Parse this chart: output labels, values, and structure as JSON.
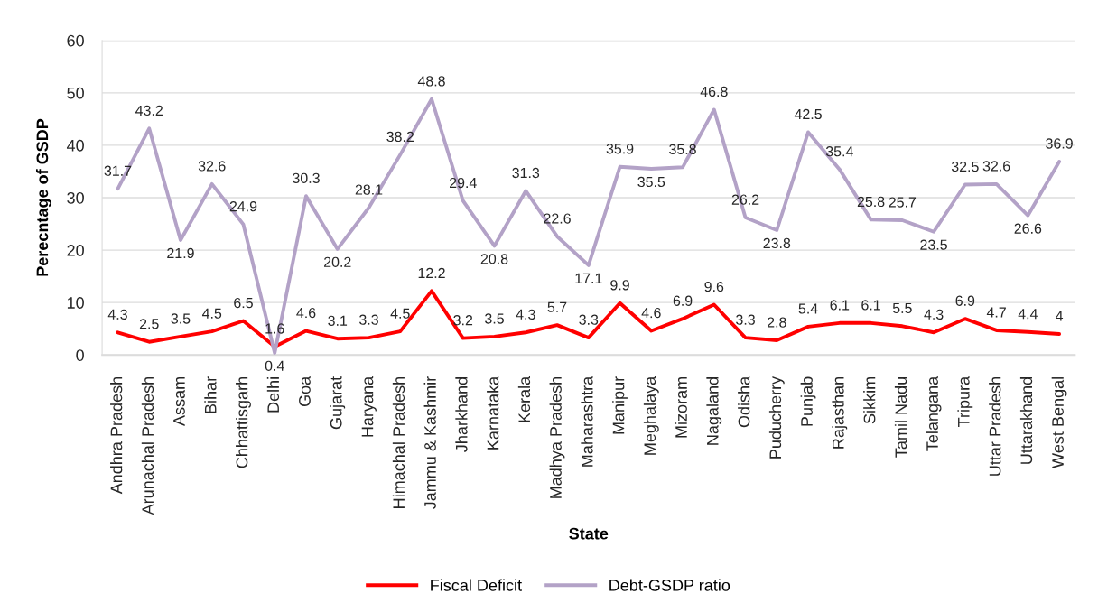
{
  "chart_data": {
    "type": "line",
    "xlabel": "State",
    "ylabel": "Perecntage of GSDP",
    "categories": [
      "Andhra Pradesh",
      "Arunachal Pradesh",
      "Assam",
      "Bihar",
      "Chhattisgarh",
      "Delhi",
      "Goa",
      "Gujarat",
      "Haryana",
      "Himachal Pradesh",
      "Jammu & Kashmir",
      "Jharkhand",
      "Karnataka",
      "Kerala",
      "Madhya Pradesh",
      "Maharashtra",
      "Manipur",
      "Meghalaya",
      "Mizoram",
      "Nagaland",
      "Odisha",
      "Puducherry",
      "Punjab",
      "Rajasthan",
      "Sikkim",
      "Tamil Nadu",
      "Telangana",
      "Tripura",
      "Uttar Pradesh",
      "Uttarakhand",
      "West Bengal"
    ],
    "series": [
      {
        "name": "Fiscal Deficit",
        "color": "#ff0000",
        "values": [
          4.3,
          2.5,
          3.5,
          4.5,
          6.5,
          1.6,
          4.6,
          3.1,
          3.3,
          4.5,
          12.2,
          3.2,
          3.5,
          4.3,
          5.7,
          3.3,
          9.9,
          4.6,
          6.9,
          9.6,
          3.3,
          2.8,
          5.4,
          6.1,
          6.1,
          5.5,
          4.3,
          6.9,
          4.7,
          4.4,
          4
        ]
      },
      {
        "name": "Debt-GSDP ratio",
        "color": "#b3a2c7",
        "values": [
          31.7,
          43.2,
          21.9,
          32.6,
          24.9,
          0.4,
          30.3,
          20.2,
          28.1,
          38.2,
          48.8,
          29.4,
          20.8,
          31.3,
          22.6,
          17.1,
          35.9,
          35.5,
          35.8,
          46.8,
          26.2,
          23.8,
          42.5,
          35.4,
          25.8,
          25.7,
          23.5,
          32.5,
          32.6,
          26.6,
          36.9
        ]
      }
    ],
    "ylim": [
      0,
      60
    ],
    "yticks": [
      0,
      10,
      20,
      30,
      40,
      50,
      60
    ],
    "grid": "y",
    "legend": "bottom",
    "data_labels": true
  }
}
